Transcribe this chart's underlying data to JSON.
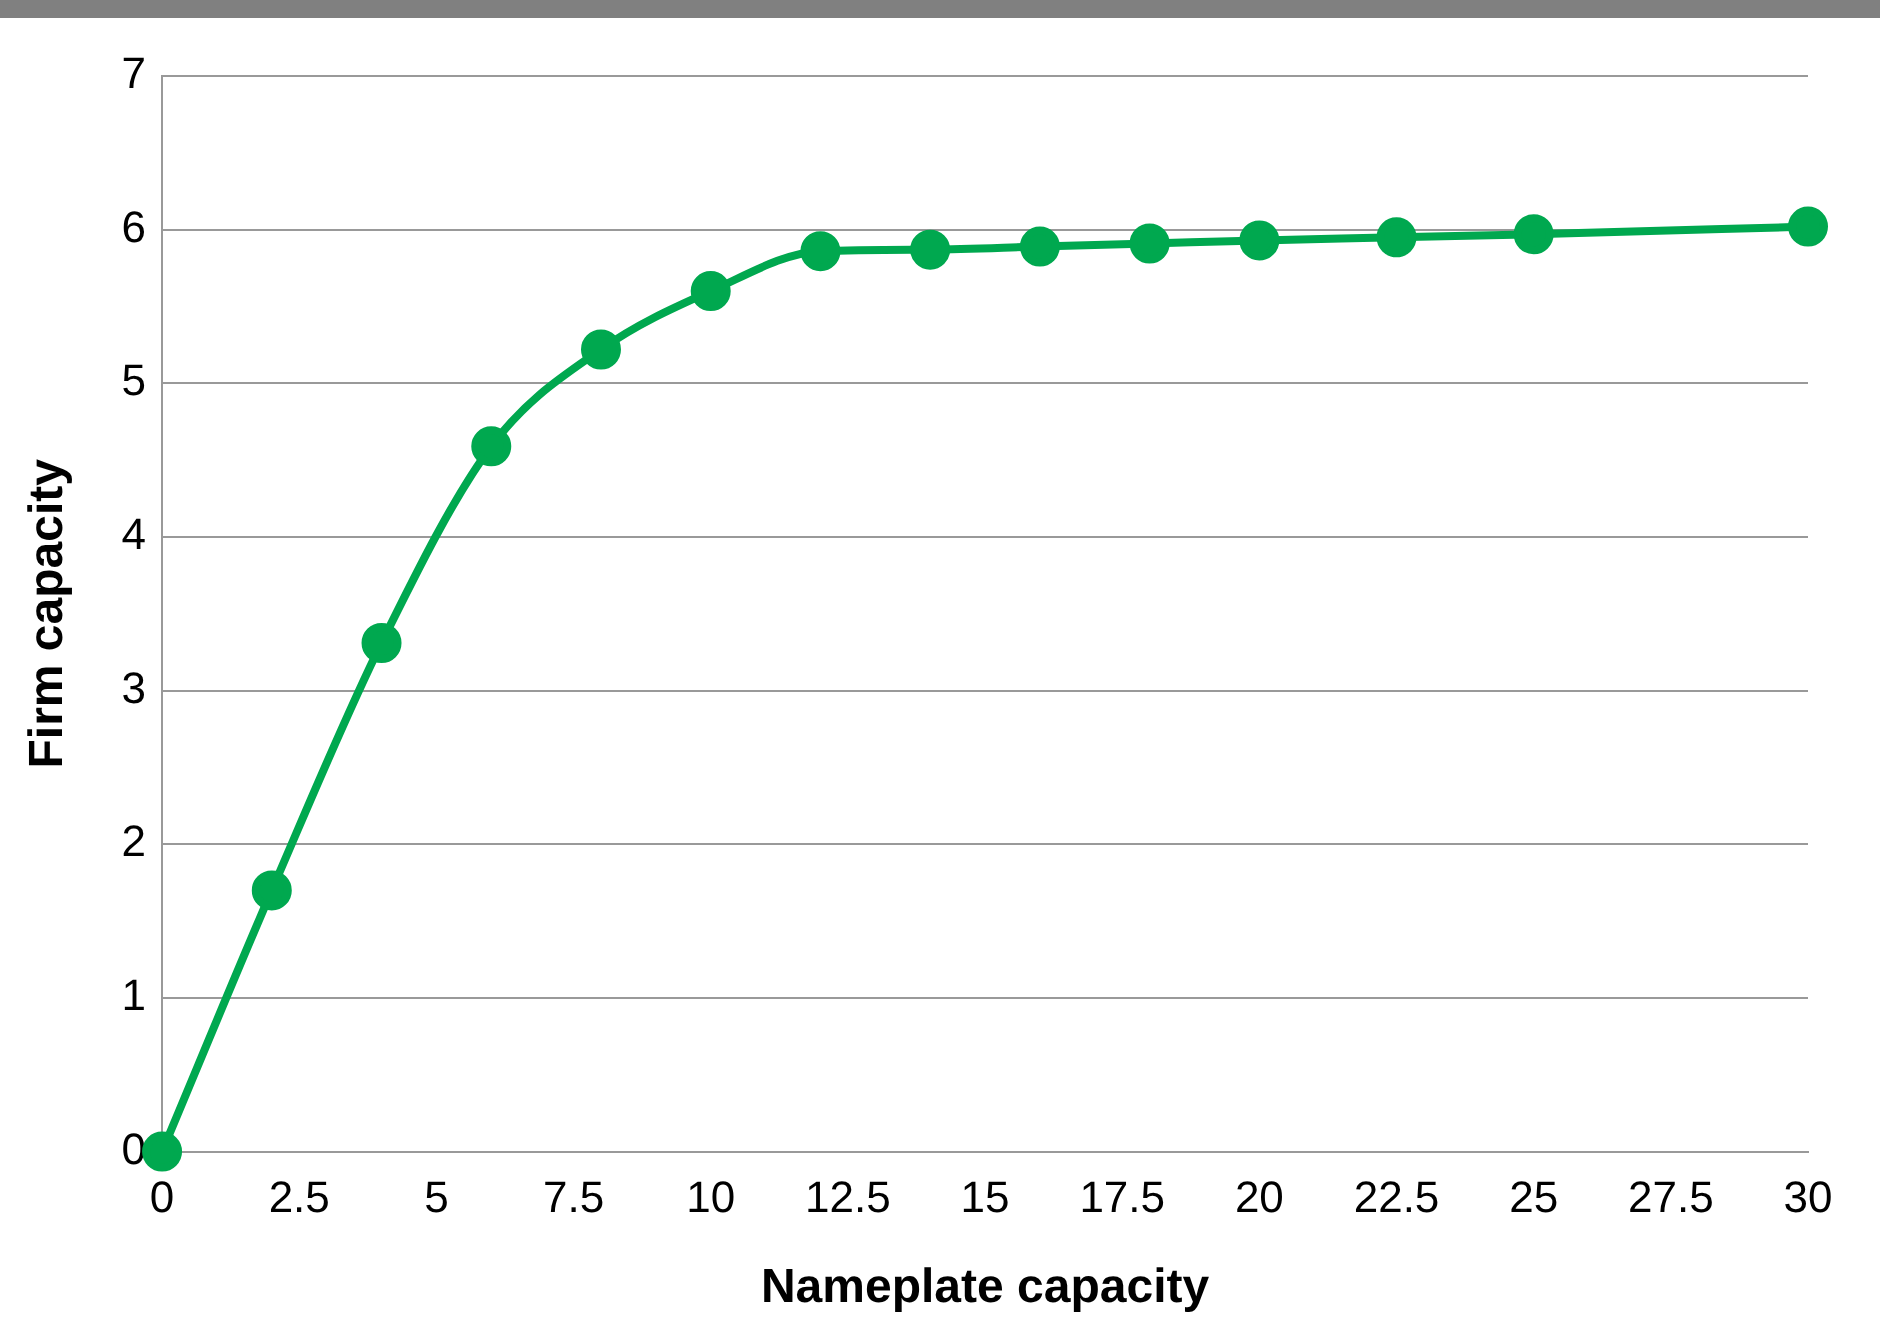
{
  "chart_data": {
    "type": "line",
    "xlabel": "Nameplate capacity",
    "ylabel": "Firm capacity",
    "x": [
      0,
      2,
      4,
      6,
      8,
      10,
      12,
      14,
      16,
      18,
      20,
      22.5,
      25,
      30
    ],
    "series": [
      {
        "color": "#00a84f",
        "values": [
          0,
          1.7,
          3.31,
          4.59,
          5.22,
          5.6,
          5.86,
          5.87,
          5.89,
          5.91,
          5.93,
          5.95,
          5.97,
          6.02
        ]
      }
    ],
    "xlim": [
      0,
      30
    ],
    "xticks": [
      0,
      2.5,
      5,
      7.5,
      10,
      12.5,
      15,
      17.5,
      20,
      22.5,
      25,
      27.5,
      30
    ],
    "ylim": [
      0,
      7
    ],
    "yticks": [
      0,
      1,
      2,
      3,
      4,
      5,
      6,
      7
    ],
    "grid": "y",
    "legend": false,
    "marker": "circle",
    "line_style": "solid"
  }
}
